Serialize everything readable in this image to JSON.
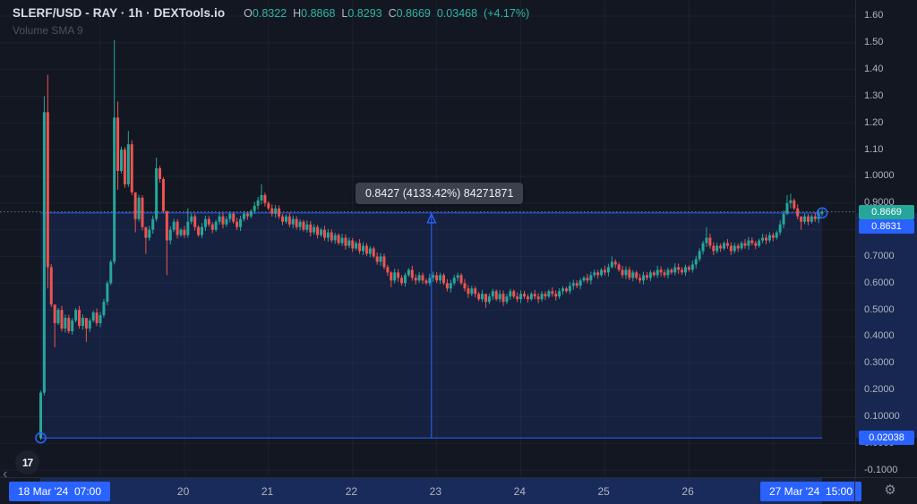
{
  "header": {
    "symbol_title": "SLERF/USD - RAY · 1h · DEXTools.io",
    "ohlc": {
      "o_label": "O",
      "o": "0.8322",
      "h_label": "H",
      "h": "0.8868",
      "l_label": "L",
      "l": "0.8293",
      "c_label": "C",
      "c": "0.8669",
      "change_abs": "0.03468",
      "change_pct": "(+4.17%)"
    },
    "indicator_label": "Volume SMA 9"
  },
  "measure": {
    "tooltip": "0.8427 (4133.42%) 84271871",
    "from_price": 0.02038,
    "to_price": 0.8631
  },
  "price_axis": {
    "labels": [
      {
        "v": 1.6,
        "t": "1.60"
      },
      {
        "v": 1.5,
        "t": "1.50"
      },
      {
        "v": 1.4,
        "t": "1.40"
      },
      {
        "v": 1.3,
        "t": "1.30"
      },
      {
        "v": 1.2,
        "t": "1.20"
      },
      {
        "v": 1.1,
        "t": "1.10"
      },
      {
        "v": 1.0,
        "t": "1.0000"
      },
      {
        "v": 0.9,
        "t": "0.9000"
      },
      {
        "v": 0.8,
        "t": "0.8000"
      },
      {
        "v": 0.7,
        "t": "0.7000"
      },
      {
        "v": 0.6,
        "t": "0.6000"
      },
      {
        "v": 0.5,
        "t": "0.5000"
      },
      {
        "v": 0.4,
        "t": "0.4000"
      },
      {
        "v": 0.3,
        "t": "0.3000"
      },
      {
        "v": 0.2,
        "t": "0.2000"
      },
      {
        "v": 0.1,
        "t": "0.10000"
      },
      {
        "v": 0.0,
        "t": "0.0000"
      },
      {
        "v": -0.1,
        "t": "-0.1000"
      }
    ],
    "badges": [
      {
        "text": "0.8669",
        "color": "green"
      },
      {
        "text": "0.8631",
        "color": "blue"
      },
      {
        "text": "0.02038",
        "color": "blue"
      }
    ]
  },
  "time_axis": {
    "start_badge": "18 Mar '24  07:00",
    "end_badge": "27 Mar '24  15:00",
    "day_labels": [
      "20",
      "21",
      "22",
      "23",
      "24",
      "25",
      "26"
    ]
  },
  "footer": {
    "logo_glyph": "17",
    "gear_glyph": "⚙",
    "chevron_glyph": "‹"
  },
  "colors": {
    "background": "#131722",
    "up": "#26a69a",
    "down": "#ef5350",
    "accent_blue": "#2962ff",
    "badge_green": "#26a69a",
    "axis_text": "#b2b5be",
    "ohlc_text": "#2eb5a5"
  },
  "chart_data": {
    "type": "candlestick",
    "title": "SLERF/USD - RAY · 1h · DEXTools.io",
    "timeframe": "1h",
    "x_range": [
      "18 Mar '24 07:00",
      "27 Mar '24 15:00"
    ],
    "y_axis_visible_range": [
      -0.17,
      1.65
    ],
    "current_price": 0.8669,
    "last_change_pct": 4.17,
    "measured_range": {
      "from": 0.02038,
      "to": 0.8631,
      "delta": 0.8427,
      "delta_pct": 4133.42,
      "volume": 84271871
    },
    "first_open": 0.02,
    "closes": [
      0.19,
      1.24,
      0.66,
      0.52,
      0.45,
      0.5,
      0.43,
      0.47,
      0.42,
      0.46,
      0.5,
      0.44,
      0.47,
      0.43,
      0.46,
      0.49,
      0.45,
      0.48,
      0.53,
      0.6,
      0.68,
      1.22,
      1.02,
      1.1,
      0.97,
      1.12,
      0.94,
      0.84,
      0.92,
      0.81,
      0.77,
      0.8,
      0.84,
      1.03,
      0.99,
      0.87,
      0.76,
      0.8,
      0.83,
      0.78,
      0.8,
      0.78,
      0.83,
      0.85,
      0.81,
      0.78,
      0.81,
      0.84,
      0.82,
      0.8,
      0.83,
      0.85,
      0.82,
      0.84,
      0.86,
      0.83,
      0.81,
      0.84,
      0.86,
      0.85,
      0.87,
      0.89,
      0.91,
      0.93,
      0.9,
      0.88,
      0.86,
      0.88,
      0.85,
      0.83,
      0.85,
      0.82,
      0.84,
      0.81,
      0.83,
      0.8,
      0.82,
      0.79,
      0.81,
      0.78,
      0.8,
      0.77,
      0.79,
      0.76,
      0.78,
      0.75,
      0.77,
      0.74,
      0.76,
      0.73,
      0.75,
      0.72,
      0.74,
      0.71,
      0.73,
      0.7,
      0.68,
      0.7,
      0.66,
      0.64,
      0.61,
      0.64,
      0.62,
      0.6,
      0.63,
      0.65,
      0.62,
      0.61,
      0.63,
      0.61,
      0.6,
      0.62,
      0.63,
      0.61,
      0.63,
      0.6,
      0.58,
      0.6,
      0.62,
      0.63,
      0.6,
      0.58,
      0.56,
      0.58,
      0.56,
      0.54,
      0.56,
      0.53,
      0.55,
      0.57,
      0.54,
      0.56,
      0.53,
      0.55,
      0.57,
      0.55,
      0.54,
      0.56,
      0.55,
      0.54,
      0.56,
      0.55,
      0.54,
      0.56,
      0.55,
      0.57,
      0.56,
      0.55,
      0.57,
      0.58,
      0.57,
      0.59,
      0.6,
      0.59,
      0.61,
      0.62,
      0.61,
      0.63,
      0.64,
      0.63,
      0.65,
      0.64,
      0.66,
      0.68,
      0.67,
      0.65,
      0.63,
      0.65,
      0.62,
      0.64,
      0.62,
      0.61,
      0.63,
      0.62,
      0.64,
      0.63,
      0.65,
      0.64,
      0.63,
      0.65,
      0.64,
      0.66,
      0.65,
      0.64,
      0.66,
      0.65,
      0.67,
      0.69,
      0.72,
      0.75,
      0.77,
      0.74,
      0.72,
      0.74,
      0.73,
      0.75,
      0.74,
      0.72,
      0.74,
      0.73,
      0.75,
      0.74,
      0.76,
      0.75,
      0.74,
      0.76,
      0.77,
      0.76,
      0.78,
      0.77,
      0.79,
      0.82,
      0.86,
      0.9,
      0.91,
      0.88,
      0.85,
      0.83,
      0.85,
      0.83,
      0.85,
      0.84,
      0.86,
      0.8669
    ],
    "wick_overrides": {
      "1": [
        1.3,
        0.18
      ],
      "2": [
        1.38,
        0.58
      ],
      "4": [
        0.47,
        0.36
      ],
      "13": [
        0.44,
        0.38
      ],
      "21": [
        1.51,
        0.67
      ],
      "22": [
        1.28,
        0.95
      ],
      "25": [
        1.17,
        0.96
      ],
      "27": [
        0.93,
        0.79
      ],
      "30": [
        0.78,
        0.71
      ],
      "33": [
        1.07,
        0.83
      ],
      "36": [
        0.87,
        0.63
      ],
      "42": [
        0.88,
        0.77
      ],
      "63": [
        0.97,
        0.895
      ],
      "100": [
        0.645,
        0.585
      ],
      "127": [
        0.545,
        0.508
      ],
      "163": [
        0.7,
        0.655
      ],
      "190": [
        0.81,
        0.735
      ],
      "213": [
        0.93,
        0.855
      ],
      "214": [
        0.935,
        0.88
      ],
      "217": [
        0.845,
        0.8
      ]
    }
  }
}
